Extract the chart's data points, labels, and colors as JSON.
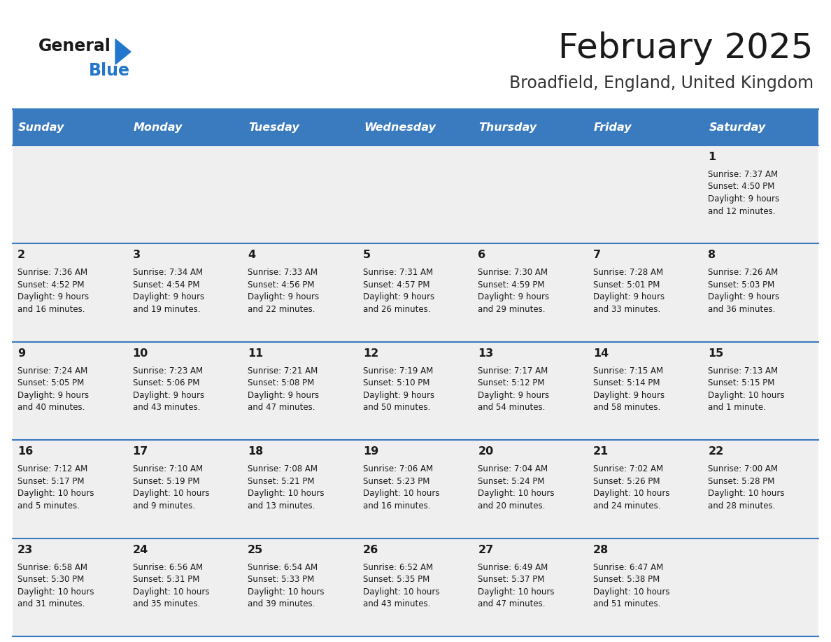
{
  "title": "February 2025",
  "subtitle": "Broadfield, England, United Kingdom",
  "header_color": "#3a7abf",
  "header_text_color": "#ffffff",
  "cell_bg_light": "#efefef",
  "border_color": "#3a7abf",
  "day_names": [
    "Sunday",
    "Monday",
    "Tuesday",
    "Wednesday",
    "Thursday",
    "Friday",
    "Saturday"
  ],
  "title_color": "#1a1a1a",
  "subtitle_color": "#333333",
  "logo_color": "#2277cc",
  "text_color": "#1a1a1a",
  "calendar_data": [
    [
      null,
      null,
      null,
      null,
      null,
      null,
      {
        "day": 1,
        "sunrise": "7:37 AM",
        "sunset": "4:50 PM",
        "daylight_h": "9 hours",
        "daylight_m": "and 12 minutes."
      }
    ],
    [
      {
        "day": 2,
        "sunrise": "7:36 AM",
        "sunset": "4:52 PM",
        "daylight_h": "9 hours",
        "daylight_m": "and 16 minutes."
      },
      {
        "day": 3,
        "sunrise": "7:34 AM",
        "sunset": "4:54 PM",
        "daylight_h": "9 hours",
        "daylight_m": "and 19 minutes."
      },
      {
        "day": 4,
        "sunrise": "7:33 AM",
        "sunset": "4:56 PM",
        "daylight_h": "9 hours",
        "daylight_m": "and 22 minutes."
      },
      {
        "day": 5,
        "sunrise": "7:31 AM",
        "sunset": "4:57 PM",
        "daylight_h": "9 hours",
        "daylight_m": "and 26 minutes."
      },
      {
        "day": 6,
        "sunrise": "7:30 AM",
        "sunset": "4:59 PM",
        "daylight_h": "9 hours",
        "daylight_m": "and 29 minutes."
      },
      {
        "day": 7,
        "sunrise": "7:28 AM",
        "sunset": "5:01 PM",
        "daylight_h": "9 hours",
        "daylight_m": "and 33 minutes."
      },
      {
        "day": 8,
        "sunrise": "7:26 AM",
        "sunset": "5:03 PM",
        "daylight_h": "9 hours",
        "daylight_m": "and 36 minutes."
      }
    ],
    [
      {
        "day": 9,
        "sunrise": "7:24 AM",
        "sunset": "5:05 PM",
        "daylight_h": "9 hours",
        "daylight_m": "and 40 minutes."
      },
      {
        "day": 10,
        "sunrise": "7:23 AM",
        "sunset": "5:06 PM",
        "daylight_h": "9 hours",
        "daylight_m": "and 43 minutes."
      },
      {
        "day": 11,
        "sunrise": "7:21 AM",
        "sunset": "5:08 PM",
        "daylight_h": "9 hours",
        "daylight_m": "and 47 minutes."
      },
      {
        "day": 12,
        "sunrise": "7:19 AM",
        "sunset": "5:10 PM",
        "daylight_h": "9 hours",
        "daylight_m": "and 50 minutes."
      },
      {
        "day": 13,
        "sunrise": "7:17 AM",
        "sunset": "5:12 PM",
        "daylight_h": "9 hours",
        "daylight_m": "and 54 minutes."
      },
      {
        "day": 14,
        "sunrise": "7:15 AM",
        "sunset": "5:14 PM",
        "daylight_h": "9 hours",
        "daylight_m": "and 58 minutes."
      },
      {
        "day": 15,
        "sunrise": "7:13 AM",
        "sunset": "5:15 PM",
        "daylight_h": "10 hours",
        "daylight_m": "and 1 minute."
      }
    ],
    [
      {
        "day": 16,
        "sunrise": "7:12 AM",
        "sunset": "5:17 PM",
        "daylight_h": "10 hours",
        "daylight_m": "and 5 minutes."
      },
      {
        "day": 17,
        "sunrise": "7:10 AM",
        "sunset": "5:19 PM",
        "daylight_h": "10 hours",
        "daylight_m": "and 9 minutes."
      },
      {
        "day": 18,
        "sunrise": "7:08 AM",
        "sunset": "5:21 PM",
        "daylight_h": "10 hours",
        "daylight_m": "and 13 minutes."
      },
      {
        "day": 19,
        "sunrise": "7:06 AM",
        "sunset": "5:23 PM",
        "daylight_h": "10 hours",
        "daylight_m": "and 16 minutes."
      },
      {
        "day": 20,
        "sunrise": "7:04 AM",
        "sunset": "5:24 PM",
        "daylight_h": "10 hours",
        "daylight_m": "and 20 minutes."
      },
      {
        "day": 21,
        "sunrise": "7:02 AM",
        "sunset": "5:26 PM",
        "daylight_h": "10 hours",
        "daylight_m": "and 24 minutes."
      },
      {
        "day": 22,
        "sunrise": "7:00 AM",
        "sunset": "5:28 PM",
        "daylight_h": "10 hours",
        "daylight_m": "and 28 minutes."
      }
    ],
    [
      {
        "day": 23,
        "sunrise": "6:58 AM",
        "sunset": "5:30 PM",
        "daylight_h": "10 hours",
        "daylight_m": "and 31 minutes."
      },
      {
        "day": 24,
        "sunrise": "6:56 AM",
        "sunset": "5:31 PM",
        "daylight_h": "10 hours",
        "daylight_m": "and 35 minutes."
      },
      {
        "day": 25,
        "sunrise": "6:54 AM",
        "sunset": "5:33 PM",
        "daylight_h": "10 hours",
        "daylight_m": "and 39 minutes."
      },
      {
        "day": 26,
        "sunrise": "6:52 AM",
        "sunset": "5:35 PM",
        "daylight_h": "10 hours",
        "daylight_m": "and 43 minutes."
      },
      {
        "day": 27,
        "sunrise": "6:49 AM",
        "sunset": "5:37 PM",
        "daylight_h": "10 hours",
        "daylight_m": "and 47 minutes."
      },
      {
        "day": 28,
        "sunrise": "6:47 AM",
        "sunset": "5:38 PM",
        "daylight_h": "10 hours",
        "daylight_m": "and 51 minutes."
      },
      null
    ]
  ]
}
